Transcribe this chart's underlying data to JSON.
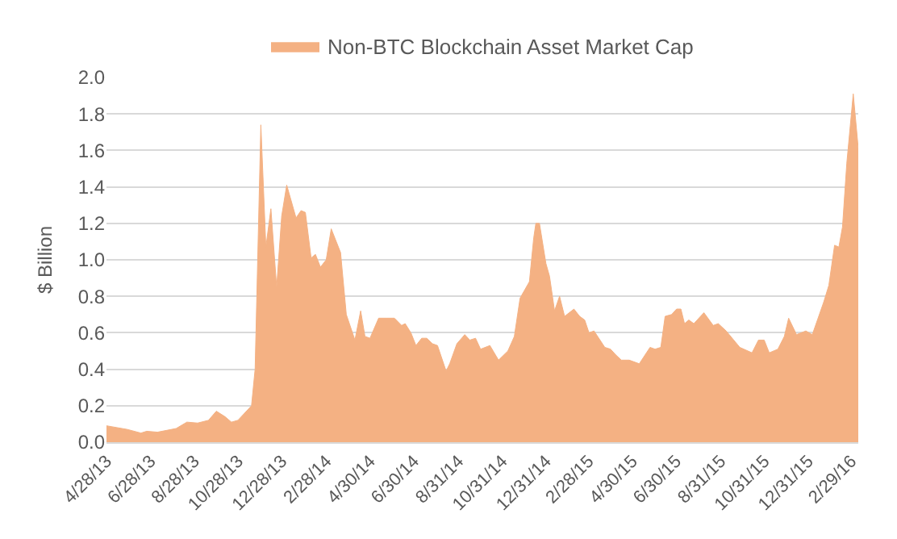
{
  "chart_data": {
    "type": "area",
    "ylabel": "$ Billion",
    "legend": "top",
    "grid": "y",
    "xlim": [
      "2013-04-28",
      "2016-03-10"
    ],
    "xticks": [
      {
        "value": "2013-04-28",
        "label": "4/28/13"
      },
      {
        "value": "2013-06-28",
        "label": "6/28/13"
      },
      {
        "value": "2013-08-28",
        "label": "8/28/13"
      },
      {
        "value": "2013-10-28",
        "label": "10/28/13"
      },
      {
        "value": "2013-12-28",
        "label": "12/28/13"
      },
      {
        "value": "2014-02-28",
        "label": "2/28/14"
      },
      {
        "value": "2014-04-30",
        "label": "4/30/14"
      },
      {
        "value": "2014-06-30",
        "label": "6/30/14"
      },
      {
        "value": "2014-08-31",
        "label": "8/31/14"
      },
      {
        "value": "2014-10-31",
        "label": "10/31/14"
      },
      {
        "value": "2014-12-31",
        "label": "12/31/14"
      },
      {
        "value": "2015-02-28",
        "label": "2/28/15"
      },
      {
        "value": "2015-04-30",
        "label": "4/30/15"
      },
      {
        "value": "2015-06-30",
        "label": "6/30/15"
      },
      {
        "value": "2015-08-31",
        "label": "8/31/15"
      },
      {
        "value": "2015-10-31",
        "label": "10/31/15"
      },
      {
        "value": "2015-12-31",
        "label": "12/31/15"
      },
      {
        "value": "2016-02-29",
        "label": "2/29/16"
      }
    ],
    "ylim": [
      0,
      2
    ],
    "yticks": [
      {
        "value": 0,
        "label": "0.0"
      },
      {
        "value": 0.2,
        "label": "0.2"
      },
      {
        "value": 0.4,
        "label": "0.4"
      },
      {
        "value": 0.6,
        "label": "0.6"
      },
      {
        "value": 0.8,
        "label": "0.8"
      },
      {
        "value": 1,
        "label": "1.0"
      },
      {
        "value": 1.2,
        "label": "1.2"
      },
      {
        "value": 1.4,
        "label": "1.4"
      },
      {
        "value": 1.6,
        "label": "1.6"
      },
      {
        "value": 1.8,
        "label": "1.8"
      },
      {
        "value": 2,
        "label": "2.0"
      }
    ],
    "x": [
      "2013-04-28",
      "2013-05-27",
      "2013-06-15",
      "2013-06-23",
      "2013-07-08",
      "2013-08-03",
      "2013-08-18",
      "2013-09-02",
      "2013-09-17",
      "2013-09-28",
      "2013-10-10",
      "2013-10-19",
      "2013-10-28",
      "2013-11-16",
      "2013-11-21",
      "2013-11-29",
      "2013-12-06",
      "2013-12-13",
      "2013-12-21",
      "2013-12-28",
      "2014-01-04",
      "2014-01-17",
      "2014-01-24",
      "2014-01-30",
      "2014-02-07",
      "2014-02-13",
      "2014-02-20",
      "2014-02-28",
      "2014-03-07",
      "2014-03-20",
      "2014-03-28",
      "2014-04-09",
      "2014-04-17",
      "2014-04-23",
      "2014-04-30",
      "2014-05-12",
      "2014-05-23",
      "2014-06-03",
      "2014-06-13",
      "2014-06-18",
      "2014-06-26",
      "2014-07-03",
      "2014-07-11",
      "2014-07-18",
      "2014-07-26",
      "2014-08-02",
      "2014-08-14",
      "2014-08-19",
      "2014-08-29",
      "2014-09-09",
      "2014-09-16",
      "2014-09-24",
      "2014-10-01",
      "2014-10-14",
      "2014-10-26",
      "2014-11-08",
      "2014-11-17",
      "2014-11-25",
      "2014-12-08",
      "2014-12-14",
      "2014-12-17",
      "2014-12-22",
      "2014-12-31",
      "2015-01-05",
      "2015-01-12",
      "2015-01-19",
      "2015-01-26",
      "2015-02-08",
      "2015-02-16",
      "2015-02-23",
      "2015-03-01",
      "2015-03-08",
      "2015-03-23",
      "2015-03-31",
      "2015-04-07",
      "2015-04-15",
      "2015-04-26",
      "2015-05-10",
      "2015-05-25",
      "2015-06-01",
      "2015-06-09",
      "2015-06-15",
      "2015-06-24",
      "2015-07-01",
      "2015-07-07",
      "2015-07-12",
      "2015-07-18",
      "2015-07-25",
      "2015-08-08",
      "2015-08-21",
      "2015-08-28",
      "2015-09-08",
      "2015-09-27",
      "2015-10-14",
      "2015-10-23",
      "2015-10-31",
      "2015-11-07",
      "2015-11-19",
      "2015-11-28",
      "2015-12-04",
      "2015-12-15",
      "2015-12-28",
      "2016-01-06",
      "2016-01-22",
      "2016-01-29",
      "2016-02-06",
      "2016-02-12",
      "2016-02-17",
      "2016-02-23",
      "2016-03-03",
      "2016-03-10"
    ],
    "series": [
      {
        "name": "Non-BTC Blockchain Asset Market Cap",
        "color": "#f4b183",
        "values": [
          0.09,
          0.07,
          0.05,
          0.06,
          0.055,
          0.075,
          0.11,
          0.105,
          0.12,
          0.17,
          0.14,
          0.11,
          0.12,
          0.2,
          0.4,
          1.74,
          1.07,
          1.28,
          0.85,
          1.24,
          1.41,
          1.23,
          1.27,
          1.26,
          1.01,
          1.03,
          0.96,
          1.0,
          1.17,
          1.04,
          0.7,
          0.56,
          0.72,
          0.58,
          0.57,
          0.68,
          0.68,
          0.68,
          0.64,
          0.65,
          0.6,
          0.53,
          0.57,
          0.57,
          0.54,
          0.53,
          0.39,
          0.43,
          0.54,
          0.59,
          0.56,
          0.57,
          0.51,
          0.53,
          0.45,
          0.5,
          0.58,
          0.79,
          0.88,
          1.12,
          1.2,
          1.2,
          0.98,
          0.91,
          0.72,
          0.8,
          0.69,
          0.73,
          0.69,
          0.67,
          0.6,
          0.61,
          0.52,
          0.51,
          0.48,
          0.45,
          0.45,
          0.43,
          0.52,
          0.51,
          0.52,
          0.69,
          0.7,
          0.73,
          0.73,
          0.65,
          0.67,
          0.65,
          0.71,
          0.64,
          0.65,
          0.61,
          0.52,
          0.49,
          0.56,
          0.56,
          0.49,
          0.51,
          0.58,
          0.68,
          0.59,
          0.61,
          0.59,
          0.77,
          0.86,
          1.08,
          1.07,
          1.18,
          1.53,
          1.91,
          1.61
        ]
      }
    ]
  }
}
